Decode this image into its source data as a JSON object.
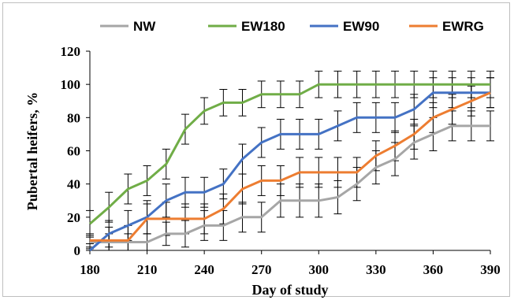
{
  "chart_data": {
    "type": "line",
    "xlabel": "Day of study",
    "ylabel": "Pubertal heifers, %",
    "xlim": [
      180,
      390
    ],
    "ylim": [
      0,
      120
    ],
    "xticks": [
      180,
      210,
      240,
      270,
      300,
      330,
      360,
      390
    ],
    "yticks": [
      0,
      20,
      40,
      60,
      80,
      100,
      120
    ],
    "grid": false,
    "legend_position": "top",
    "x": [
      180,
      190,
      200,
      210,
      220,
      230,
      240,
      250,
      260,
      270,
      280,
      290,
      300,
      310,
      320,
      330,
      340,
      350,
      360,
      370,
      380,
      390
    ],
    "series": [
      {
        "name": "NW",
        "color": "#a6a6a6",
        "values": [
          5,
          5,
          5,
          5,
          10,
          10,
          15,
          15,
          20,
          20,
          30,
          30,
          30,
          32,
          40,
          50,
          55,
          65,
          70,
          75,
          75,
          75
        ],
        "error": [
          4,
          5,
          5,
          5,
          7,
          8,
          9,
          9,
          9,
          9,
          10,
          10,
          10,
          10,
          10,
          10,
          10,
          10,
          10,
          9,
          9,
          9
        ]
      },
      {
        "name": "EW180",
        "color": "#70ad47",
        "values": [
          16,
          26,
          37,
          42,
          52,
          73,
          84,
          89,
          89,
          94,
          94,
          94,
          100,
          100,
          100,
          100,
          100,
          100,
          100,
          100,
          100,
          100
        ],
        "error": [
          8,
          9,
          9,
          9,
          9,
          9,
          8,
          8,
          8,
          8,
          8,
          8,
          8,
          8,
          8,
          8,
          8,
          8,
          8,
          8,
          8,
          8
        ]
      },
      {
        "name": "EW90",
        "color": "#4472c4",
        "values": [
          0,
          10,
          15,
          20,
          30,
          35,
          35,
          40,
          55,
          65,
          70,
          70,
          70,
          75,
          80,
          80,
          80,
          85,
          95,
          95,
          95,
          95
        ],
        "error": [
          4,
          8,
          9,
          10,
          10,
          9,
          9,
          9,
          9,
          9,
          9,
          9,
          9,
          9,
          9,
          9,
          9,
          9,
          9,
          9,
          9,
          9
        ]
      },
      {
        "name": "EWRG",
        "color": "#ed7d31",
        "values": [
          6,
          6,
          6,
          19,
          19,
          19,
          19,
          25,
          37,
          42,
          42,
          47,
          47,
          47,
          47,
          57,
          63,
          70,
          80,
          85,
          90,
          95
        ],
        "error": [
          4,
          8,
          9,
          9,
          10,
          9,
          9,
          9,
          9,
          9,
          9,
          9,
          9,
          9,
          9,
          9,
          9,
          9,
          9,
          9,
          9,
          9
        ]
      }
    ],
    "error_bar_color": "#000000"
  }
}
